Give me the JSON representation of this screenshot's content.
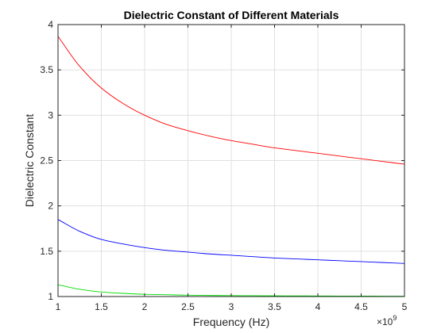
{
  "chart_data": {
    "type": "line",
    "title": "Dielectric Constant of Different Materials",
    "xlabel": "Frequency (Hz)",
    "ylabel": "Dielectric Constant",
    "x_exponent_base": "×10",
    "x_exponent_power": "9",
    "xlim": [
      1,
      5
    ],
    "ylim": [
      1,
      4
    ],
    "x_ticks": [
      1,
      1.5,
      2,
      2.5,
      3,
      3.5,
      4,
      4.5,
      5
    ],
    "y_ticks": [
      1,
      1.5,
      2,
      2.5,
      3,
      3.5,
      4
    ],
    "x_tick_labels": [
      "1",
      "1.5",
      "2",
      "2.5",
      "3",
      "3.5",
      "4",
      "4.5",
      "5"
    ],
    "y_tick_labels": [
      "1",
      "1.5",
      "2",
      "2.5",
      "3",
      "3.5",
      "4"
    ],
    "grid": true,
    "x": [
      1,
      1.25,
      1.5,
      1.75,
      2,
      2.25,
      2.5,
      2.75,
      3,
      3.25,
      3.5,
      3.75,
      4,
      4.25,
      4.5,
      4.75,
      5
    ],
    "series": [
      {
        "color": "#ff0000",
        "values": [
          3.87,
          3.54,
          3.3,
          3.13,
          3.0,
          2.9,
          2.83,
          2.77,
          2.72,
          2.68,
          2.64,
          2.61,
          2.58,
          2.55,
          2.52,
          2.49,
          2.46
        ]
      },
      {
        "color": "#0000ff",
        "values": [
          1.85,
          1.72,
          1.63,
          1.58,
          1.54,
          1.51,
          1.49,
          1.47,
          1.455,
          1.44,
          1.425,
          1.415,
          1.405,
          1.395,
          1.385,
          1.375,
          1.365
        ]
      },
      {
        "color": "#00dd00",
        "values": [
          1.13,
          1.08,
          1.05,
          1.035,
          1.025,
          1.02,
          1.015,
          1.012,
          1.01,
          1.009,
          1.008,
          1.007,
          1.006,
          1.005,
          1.005,
          1.004,
          1.004
        ]
      }
    ]
  }
}
